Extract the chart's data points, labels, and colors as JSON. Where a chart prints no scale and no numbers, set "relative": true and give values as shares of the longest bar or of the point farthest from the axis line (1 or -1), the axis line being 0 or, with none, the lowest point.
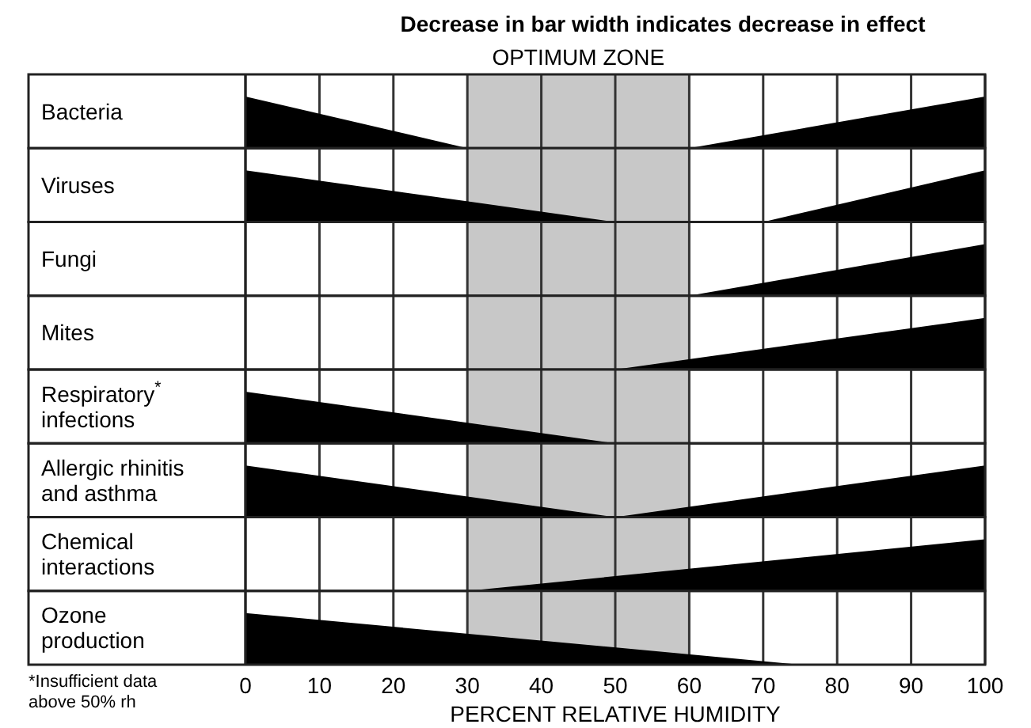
{
  "chart_data": [
    {
      "type": "area",
      "title": "Decrease in bar width indicates decrease in effect",
      "ylabel": "Bacteria",
      "relative": true,
      "xlim": [
        0,
        100
      ],
      "xticks": [
        0,
        10,
        20,
        30,
        40,
        50,
        60,
        70,
        80,
        90,
        100
      ],
      "tick_labels": false,
      "grid": "x",
      "bands": [
        {
          "axis": "x",
          "from": 30,
          "to": 60,
          "label": "OPTIMUM ZONE",
          "color": "#c8c8c8"
        }
      ],
      "series": [
        {
          "color": "#000000",
          "x": [
            0,
            30
          ],
          "values": [
            1,
            0
          ]
        },
        {
          "color": "#000000",
          "x": [
            60,
            100
          ],
          "values": [
            0,
            1
          ]
        }
      ]
    },
    {
      "type": "area",
      "ylabel": "Viruses",
      "relative": true,
      "xlim": [
        0,
        100
      ],
      "xticks": [
        0,
        10,
        20,
        30,
        40,
        50,
        60,
        70,
        80,
        90,
        100
      ],
      "tick_labels": false,
      "grid": "x",
      "bands": [
        {
          "axis": "x",
          "from": 30,
          "to": 60,
          "color": "#c8c8c8"
        }
      ],
      "series": [
        {
          "color": "#000000",
          "x": [
            0,
            50
          ],
          "values": [
            1,
            0
          ]
        },
        {
          "color": "#000000",
          "x": [
            70,
            100
          ],
          "values": [
            0,
            1
          ]
        }
      ]
    },
    {
      "type": "area",
      "ylabel": "Fungi",
      "relative": true,
      "xlim": [
        0,
        100
      ],
      "xticks": [
        0,
        10,
        20,
        30,
        40,
        50,
        60,
        70,
        80,
        90,
        100
      ],
      "tick_labels": false,
      "grid": "x",
      "bands": [
        {
          "axis": "x",
          "from": 30,
          "to": 60,
          "color": "#c8c8c8"
        }
      ],
      "series": [
        {
          "color": "#000000",
          "x": [
            60,
            100
          ],
          "values": [
            0,
            1
          ]
        }
      ]
    },
    {
      "type": "area",
      "ylabel": "Mites",
      "relative": true,
      "xlim": [
        0,
        100
      ],
      "xticks": [
        0,
        10,
        20,
        30,
        40,
        50,
        60,
        70,
        80,
        90,
        100
      ],
      "tick_labels": false,
      "grid": "x",
      "bands": [
        {
          "axis": "x",
          "from": 30,
          "to": 60,
          "color": "#c8c8c8"
        }
      ],
      "series": [
        {
          "color": "#000000",
          "x": [
            50,
            100
          ],
          "values": [
            0,
            1
          ]
        }
      ]
    },
    {
      "type": "area",
      "ylabel": "Respiratory$^{*}$\ninfections",
      "relative": true,
      "xlim": [
        0,
        100
      ],
      "xticks": [
        0,
        10,
        20,
        30,
        40,
        50,
        60,
        70,
        80,
        90,
        100
      ],
      "tick_labels": false,
      "grid": "x",
      "bands": [
        {
          "axis": "x",
          "from": 30,
          "to": 60,
          "color": "#c8c8c8"
        }
      ],
      "series": [
        {
          "color": "#000000",
          "x": [
            0,
            50
          ],
          "values": [
            1,
            0
          ]
        }
      ]
    },
    {
      "type": "area",
      "ylabel": "Allergic rhinitis\nand asthma",
      "relative": true,
      "xlim": [
        0,
        100
      ],
      "xticks": [
        0,
        10,
        20,
        30,
        40,
        50,
        60,
        70,
        80,
        90,
        100
      ],
      "tick_labels": false,
      "grid": "x",
      "bands": [
        {
          "axis": "x",
          "from": 30,
          "to": 60,
          "color": "#c8c8c8"
        }
      ],
      "series": [
        {
          "color": "#000000",
          "x": [
            0,
            50
          ],
          "values": [
            1,
            0
          ]
        },
        {
          "color": "#000000",
          "x": [
            50,
            100
          ],
          "values": [
            0,
            1
          ]
        }
      ]
    },
    {
      "type": "area",
      "ylabel": "Chemical\ninteractions",
      "relative": true,
      "xlim": [
        0,
        100
      ],
      "xticks": [
        0,
        10,
        20,
        30,
        40,
        50,
        60,
        70,
        80,
        90,
        100
      ],
      "tick_labels": false,
      "grid": "x",
      "bands": [
        {
          "axis": "x",
          "from": 30,
          "to": 60,
          "color": "#c8c8c8"
        }
      ],
      "series": [
        {
          "color": "#000000",
          "x": [
            30,
            100
          ],
          "values": [
            0,
            1
          ]
        }
      ]
    },
    {
      "type": "area",
      "ylabel": "Ozone\nproduction",
      "xlabel": "PERCENT RELATIVE HUMIDITY",
      "annotations": [
        "*Insufficient data\nabove 50% rh"
      ],
      "relative": true,
      "xlim": [
        0,
        100
      ],
      "xticks": [
        0,
        10,
        20,
        30,
        40,
        50,
        60,
        70,
        80,
        90,
        100
      ],
      "grid": "x",
      "bands": [
        {
          "axis": "x",
          "from": 30,
          "to": 60,
          "color": "#c8c8c8"
        }
      ],
      "series": [
        {
          "color": "#000000",
          "x": [
            0,
            75
          ],
          "values": [
            1,
            0
          ]
        }
      ]
    }
  ]
}
